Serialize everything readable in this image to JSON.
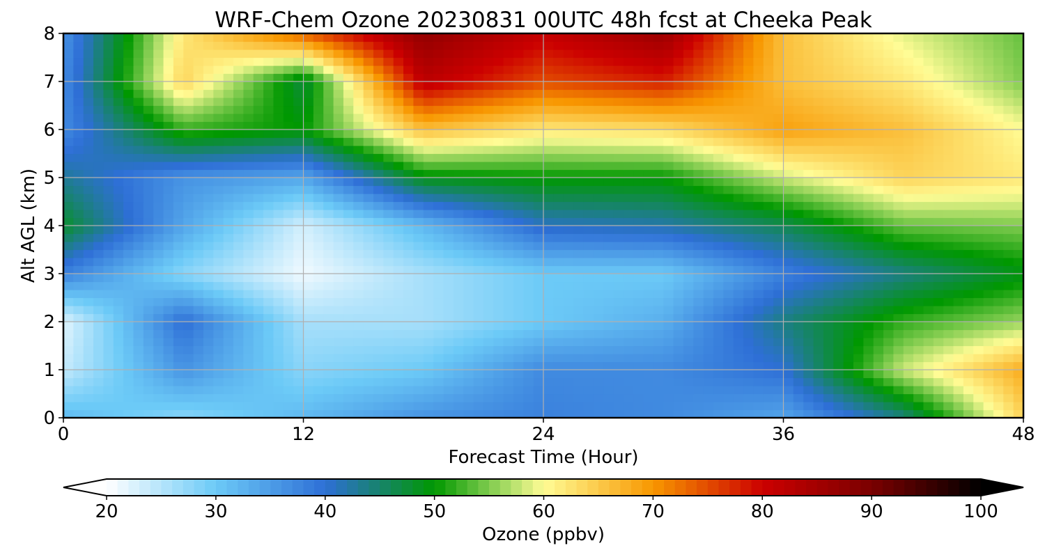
{
  "chart_data": {
    "type": "heatmap",
    "title": "WRF-Chem Ozone  20230831 00UTC 48h fcst at Cheeka Peak",
    "xlabel": "Forecast Time (Hour)",
    "ylabel": "Alt AGL (km)",
    "xlim": [
      0,
      48
    ],
    "ylim": [
      0,
      8
    ],
    "x_ticks": [
      0,
      12,
      24,
      36,
      48
    ],
    "y_ticks": [
      0,
      1,
      2,
      3,
      4,
      5,
      6,
      7,
      8
    ],
    "grid": true,
    "x": [
      0,
      6,
      12,
      18,
      24,
      30,
      36,
      42,
      48
    ],
    "y": [
      0,
      1,
      2,
      3,
      4,
      5,
      6,
      7,
      8
    ],
    "z": [
      [
        32,
        28,
        32,
        36,
        38,
        37,
        34,
        44,
        64
      ],
      [
        24,
        36,
        28,
        30,
        37,
        37,
        40,
        58,
        68
      ],
      [
        22,
        40,
        26,
        26,
        30,
        33,
        44,
        52,
        56
      ],
      [
        38,
        28,
        21,
        26,
        30,
        30,
        38,
        44,
        49
      ],
      [
        48,
        34,
        23,
        32,
        41,
        42,
        46,
        54,
        55
      ],
      [
        43,
        36,
        34,
        49,
        50,
        50,
        58,
        64,
        62
      ],
      [
        37,
        52,
        50,
        66,
        62,
        63,
        69,
        66,
        60
      ],
      [
        37,
        64,
        47,
        82,
        75,
        78,
        66,
        62,
        55
      ],
      [
        36,
        62,
        74,
        87,
        81,
        86,
        66,
        59,
        54
      ]
    ],
    "colorbar": {
      "label": "Ozone  (ppbv)",
      "min": 20,
      "max": 100,
      "ticks": [
        20,
        30,
        40,
        50,
        60,
        70,
        80,
        90,
        100
      ],
      "extend": "both",
      "colormap_stops": [
        {
          "v": 20,
          "color": "#ffffff"
        },
        {
          "v": 30,
          "color": "#6ccaf7"
        },
        {
          "v": 40,
          "color": "#2e6fd6"
        },
        {
          "v": 50,
          "color": "#009800"
        },
        {
          "v": 55,
          "color": "#7fcb4e"
        },
        {
          "v": 60,
          "color": "#fffc95"
        },
        {
          "v": 70,
          "color": "#f89700"
        },
        {
          "v": 80,
          "color": "#cc0000"
        },
        {
          "v": 90,
          "color": "#7a0000"
        },
        {
          "v": 100,
          "color": "#000000"
        }
      ]
    }
  }
}
